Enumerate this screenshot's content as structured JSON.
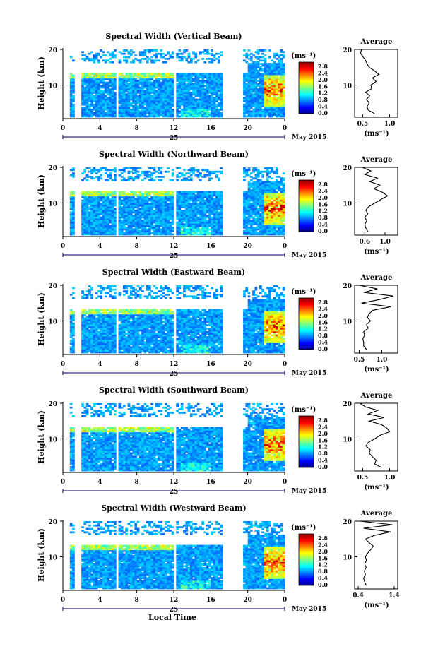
{
  "figure": {
    "xlabel": "Local Time",
    "ylabel": "Height (km)",
    "date_label": "May 2015",
    "day_label": "25",
    "x_ticks": [
      "0",
      "4",
      "8",
      "12",
      "16",
      "20",
      "0"
    ],
    "unit_label": "(ms⁻¹)",
    "avg_title": "Average",
    "avg_xlabel": "(ms⁻¹)"
  },
  "chart_data": [
    {
      "type": "heatmap",
      "title": "Spectral Width (Vertical Beam)",
      "xlim": [
        0,
        24
      ],
      "ylim": [
        1,
        20
      ],
      "y_ticks": [
        "20",
        "10"
      ],
      "colorbar": {
        "min": 0.0,
        "max": 3.0,
        "ticks": [
          "2.8",
          "2.4",
          "2.0",
          "1.6",
          "1.2",
          "0.8",
          "0.4",
          "0.0"
        ]
      },
      "gaps": [
        [
          0,
          0.8
        ],
        [
          1.2,
          2.0
        ],
        [
          5.7,
          6.0
        ],
        [
          12.0,
          12.3
        ],
        [
          17.3,
          19.6
        ]
      ],
      "average_profile": {
        "type": "line",
        "title": "Average",
        "xlim": [
          0.35,
          1.15
        ],
        "x_ticks": [
          "0.5",
          "1.0"
        ],
        "height": [
          2,
          3,
          4,
          5,
          6,
          7,
          8,
          9,
          10,
          11,
          12,
          13,
          14,
          15,
          16,
          17,
          18,
          19,
          20
        ],
        "value": [
          0.72,
          0.6,
          0.58,
          0.62,
          0.57,
          0.63,
          0.55,
          0.67,
          0.65,
          0.75,
          0.68,
          0.8,
          0.72,
          0.62,
          0.58,
          0.55,
          0.5,
          0.46,
          0.48
        ]
      }
    },
    {
      "type": "heatmap",
      "title": "Spectral Width (Northward Beam)",
      "xlim": [
        0,
        24
      ],
      "ylim": [
        1,
        20
      ],
      "y_ticks": [
        "20",
        "10"
      ],
      "colorbar": {
        "min": 0.0,
        "max": 3.0,
        "ticks": [
          "2.8",
          "2.4",
          "2.0",
          "1.6",
          "1.2",
          "0.8",
          "0.4",
          "0.0"
        ]
      },
      "gaps": [
        [
          0,
          0.8
        ],
        [
          1.2,
          2.0
        ],
        [
          5.7,
          6.0
        ],
        [
          12.0,
          12.3
        ],
        [
          17.3,
          19.6
        ]
      ],
      "average_profile": {
        "type": "line",
        "title": "Average",
        "xlim": [
          0.4,
          1.25
        ],
        "x_ticks": [
          "0.6",
          "1.0"
        ],
        "height": [
          2,
          3,
          4,
          5,
          6,
          7,
          8,
          9,
          10,
          11,
          12,
          13,
          14,
          15,
          16,
          17,
          18,
          19,
          20
        ],
        "value": [
          0.66,
          0.62,
          0.6,
          0.64,
          0.6,
          0.66,
          0.62,
          0.68,
          0.8,
          0.92,
          1.05,
          0.95,
          0.78,
          0.9,
          0.7,
          0.85,
          0.6,
          0.72,
          0.55
        ]
      }
    },
    {
      "type": "heatmap",
      "title": "Spectral Width (Eastward Beam)",
      "xlim": [
        0,
        24
      ],
      "ylim": [
        1,
        20
      ],
      "y_ticks": [
        "20",
        "10"
      ],
      "colorbar": {
        "min": 0.0,
        "max": 3.0,
        "ticks": [
          "2.8",
          "2.4",
          "2.0",
          "1.6",
          "1.2",
          "0.8",
          "0.4",
          "0.0"
        ]
      },
      "gaps": [
        [
          0,
          0.8
        ],
        [
          1.2,
          2.0
        ],
        [
          5.7,
          6.0
        ],
        [
          12.0,
          12.3
        ],
        [
          17.3,
          19.6
        ]
      ],
      "average_profile": {
        "type": "line",
        "title": "Average",
        "xlim": [
          0.4,
          1.35
        ],
        "x_ticks": [
          "0.5",
          "1.0"
        ],
        "height": [
          2,
          3,
          4,
          5,
          6,
          7,
          8,
          9,
          10,
          11,
          12,
          13,
          14,
          15,
          16,
          17,
          18,
          19,
          20
        ],
        "value": [
          0.66,
          0.6,
          0.6,
          0.58,
          0.62,
          0.6,
          0.7,
          0.66,
          0.75,
          0.68,
          0.72,
          0.8,
          1.2,
          0.55,
          0.95,
          1.25,
          0.6,
          0.9,
          0.5
        ]
      }
    },
    {
      "type": "heatmap",
      "title": "Spectral Width (Southward Beam)",
      "xlim": [
        0,
        24
      ],
      "ylim": [
        1,
        20
      ],
      "y_ticks": [
        "20",
        "10"
      ],
      "colorbar": {
        "min": 0.0,
        "max": 3.0,
        "ticks": [
          "2.8",
          "2.4",
          "2.0",
          "1.6",
          "1.2",
          "0.8",
          "0.4",
          "0.0"
        ]
      },
      "gaps": [
        [
          0,
          0.8
        ],
        [
          1.2,
          2.0
        ],
        [
          5.7,
          6.0
        ],
        [
          12.0,
          12.3
        ],
        [
          17.3,
          19.6
        ]
      ],
      "average_profile": {
        "type": "line",
        "title": "Average",
        "xlim": [
          0.35,
          1.15
        ],
        "x_ticks": [
          "0.5",
          "1.0"
        ],
        "height": [
          2,
          3,
          4,
          5,
          6,
          7,
          8,
          9,
          10,
          11,
          12,
          13,
          14,
          15,
          16,
          17,
          18,
          19,
          20
        ],
        "value": [
          0.85,
          0.72,
          0.75,
          0.68,
          0.62,
          0.64,
          0.56,
          0.6,
          0.72,
          0.82,
          1.0,
          0.95,
          0.85,
          0.62,
          0.9,
          0.6,
          0.78,
          0.55,
          0.45
        ]
      }
    },
    {
      "type": "heatmap",
      "title": "Spectral Width (Westward Beam)",
      "xlim": [
        0,
        24
      ],
      "ylim": [
        1,
        20
      ],
      "y_ticks": [
        "20",
        "10"
      ],
      "colorbar": {
        "min": 0.0,
        "max": 3.0,
        "ticks": [
          "2.8",
          "2.4",
          "2.0",
          "1.6",
          "1.2",
          "0.8",
          "0.4",
          "0.0"
        ]
      },
      "gaps": [
        [
          0,
          0.8
        ],
        [
          1.2,
          2.0
        ],
        [
          5.7,
          6.0
        ],
        [
          12.0,
          12.3
        ],
        [
          17.3,
          19.6
        ]
      ],
      "average_profile": {
        "type": "line",
        "title": "Average",
        "xlim": [
          0.3,
          1.5
        ],
        "x_ticks": [
          "0.4",
          "1.4"
        ],
        "height": [
          2,
          3,
          4,
          5,
          6,
          7,
          8,
          9,
          10,
          11,
          12,
          13,
          14,
          15,
          16,
          17,
          18,
          19,
          20
        ],
        "value": [
          0.62,
          0.58,
          0.55,
          0.6,
          0.57,
          0.62,
          0.58,
          0.63,
          0.6,
          0.66,
          0.75,
          0.82,
          0.7,
          0.6,
          0.85,
          1.3,
          0.55,
          1.35,
          0.45
        ]
      }
    }
  ]
}
